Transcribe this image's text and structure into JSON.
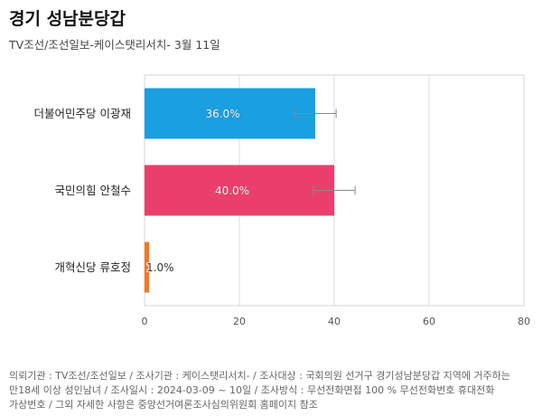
{
  "title": "경기 성남분당갑",
  "subtitle": "TV조선/조선일보-케이스탯리서치- 3월 11일",
  "chart_data": {
    "type": "bar",
    "orientation": "horizontal",
    "categories": [
      "더불어민주당 이광재",
      "국민의힘 안철수",
      "개혁신당 류호정"
    ],
    "values": [
      36.0,
      40.0,
      1.0
    ],
    "value_labels": [
      "36.0%",
      "40.0%",
      "1.0%"
    ],
    "error_bars": [
      [
        31.6,
        40.4
      ],
      [
        35.6,
        44.4
      ],
      null
    ],
    "colors": [
      "#1a9fe0",
      "#ea3f6c",
      "#f0782a"
    ],
    "xlim": [
      0,
      80
    ],
    "xticks": [
      0,
      20,
      40,
      60,
      80
    ],
    "grid": true
  },
  "footnote": {
    "line1": "의뢰기관 : TV조선/조선일보 / 조사기관 : 케이스탯리서치- / 조사대상 : 국회의원 선거구 경기성남분당갑 지역에 거주하는",
    "line2": "만18세 이상 성인남녀 / 조사일시 : 2024-03-09 ~ 10일 / 조사방식 : 무선전화면접 100 % 무선전화번호 휴대전화",
    "line3": "가상번호 / 그외 자세한 사항은 중앙선거여론조사심의위원회 홈페이지 참조"
  }
}
